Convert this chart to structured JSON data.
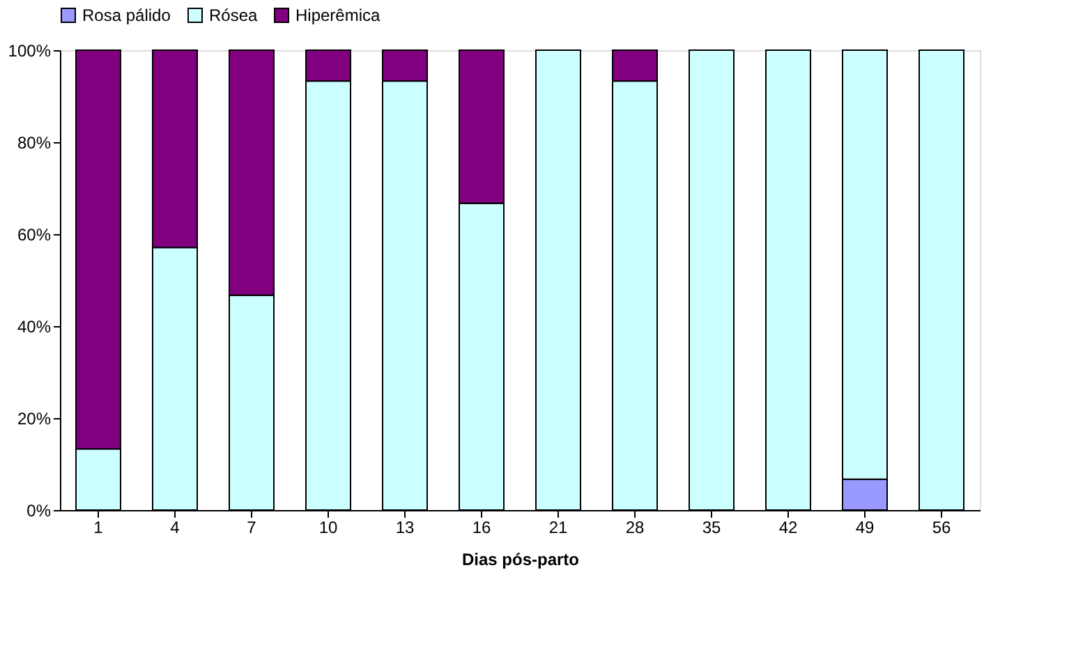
{
  "chart_data": {
    "type": "bar",
    "stacked": true,
    "xlabel": "Dias pós-parto",
    "categories": [
      "1",
      "4",
      "7",
      "10",
      "13",
      "16",
      "21",
      "28",
      "35",
      "42",
      "49",
      "56"
    ],
    "series": [
      {
        "name": "Rosa pálido",
        "color": "#9999ff",
        "values": [
          null,
          null,
          null,
          null,
          null,
          null,
          null,
          null,
          null,
          null,
          6.7,
          null
        ]
      },
      {
        "name": "Rósea",
        "color": "#ccffff",
        "values": [
          13.3,
          57.1,
          46.7,
          93.3,
          93.3,
          66.7,
          100,
          93.3,
          100,
          100,
          93.3,
          100
        ]
      },
      {
        "name": "Hiperêmica",
        "color": "#800080",
        "values": [
          86.7,
          42.9,
          53.3,
          6.7,
          6.7,
          33.3,
          null,
          6.7,
          null,
          null,
          null,
          null
        ]
      }
    ],
    "ylim": [
      0,
      100
    ],
    "yticks": [
      {
        "value": 0,
        "label": "0%"
      },
      {
        "value": 20,
        "label": "20%"
      },
      {
        "value": 40,
        "label": "40%"
      },
      {
        "value": 60,
        "label": "60%"
      },
      {
        "value": 80,
        "label": "80%"
      },
      {
        "value": 100,
        "label": "100%"
      }
    ],
    "grid": false,
    "legend": "top"
  }
}
